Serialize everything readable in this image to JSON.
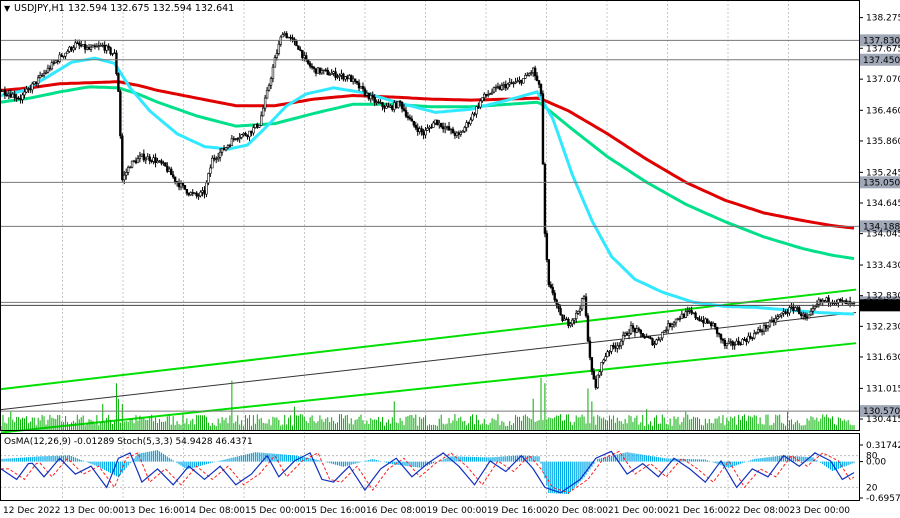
{
  "header": {
    "symbol_label": "USDJPY,H1",
    "ohlc": "132.594 132.675 132.594 132.641",
    "arrow_glyph": "▼"
  },
  "oscillator_header": {
    "text": "OsMA(12,26,9) -0.01289  Stoch(5,3,3) 54.9428 46.4371"
  },
  "colors": {
    "background": "#ffffff",
    "candle": "#000000",
    "ema_red": "#e00000",
    "ema_green": "#00e08a",
    "ema_cyan": "#30e8ff",
    "channel": "#00e000",
    "channel_mid": "#333333",
    "volume": "#00b000",
    "osma": "#00a8e8",
    "stoch_main": "#1030c0",
    "stoch_signal": "#ff2020",
    "level_line": "#777777",
    "price_tag_bg": "#a0a8b8"
  },
  "chart_data": {
    "type": "candlestick",
    "title": "USDJPY,H1",
    "ylim": [
      130.2,
      138.62
    ],
    "y_ticks": [
      "138.275",
      "137.675",
      "137.070",
      "136.460",
      "135.860",
      "135.245",
      "134.645",
      "134.045",
      "133.430",
      "132.830",
      "132.230",
      "131.630",
      "131.015",
      "130.415"
    ],
    "x_ticks": [
      "12 Dec 2022",
      "13 Dec 00:00",
      "13 Dec 16:00",
      "14 Dec 08:00",
      "15 Dec 00:00",
      "15 Dec 16:00",
      "16 Dec 08:00",
      "19 Dec 00:00",
      "19 Dec 16:00",
      "20 Dec 08:00",
      "21 Dec 00:00",
      "21 Dec 16:00",
      "22 Dec 08:00",
      "23 Dec 00:00"
    ],
    "levels": [
      {
        "label": "137.830",
        "value": 137.83
      },
      {
        "label": "137.450",
        "value": 137.45
      },
      {
        "label": "135.050",
        "value": 135.05
      },
      {
        "label": "134.188",
        "value": 134.188
      },
      {
        "label": "132.700",
        "value": 132.7
      },
      {
        "label": "130.570",
        "value": 130.57
      }
    ],
    "current_price": {
      "label": "132.641",
      "value": 132.641
    },
    "path_keypoints": [
      [
        0,
        136.85
      ],
      [
        10,
        136.7
      ],
      [
        20,
        137.1
      ],
      [
        30,
        137.5
      ],
      [
        38,
        137.75
      ],
      [
        45,
        137.65
      ],
      [
        52,
        137.72
      ],
      [
        58,
        137.55
      ],
      [
        60,
        136.85
      ],
      [
        62,
        135.1
      ],
      [
        66,
        135.4
      ],
      [
        72,
        135.55
      ],
      [
        78,
        135.5
      ],
      [
        84,
        135.35
      ],
      [
        90,
        135.05
      ],
      [
        96,
        134.85
      ],
      [
        100,
        134.78
      ],
      [
        104,
        134.85
      ],
      [
        108,
        135.5
      ],
      [
        114,
        135.7
      ],
      [
        120,
        135.95
      ],
      [
        126,
        136.0
      ],
      [
        132,
        136.2
      ],
      [
        136,
        136.8
      ],
      [
        140,
        137.45
      ],
      [
        144,
        138.0
      ],
      [
        148,
        137.85
      ],
      [
        152,
        137.7
      ],
      [
        156,
        137.4
      ],
      [
        160,
        137.25
      ],
      [
        166,
        137.2
      ],
      [
        172,
        137.15
      ],
      [
        178,
        137.1
      ],
      [
        186,
        136.8
      ],
      [
        192,
        136.6
      ],
      [
        198,
        136.5
      ],
      [
        204,
        136.6
      ],
      [
        210,
        136.2
      ],
      [
        216,
        136.0
      ],
      [
        222,
        136.25
      ],
      [
        228,
        136.1
      ],
      [
        234,
        135.95
      ],
      [
        240,
        136.3
      ],
      [
        246,
        136.7
      ],
      [
        252,
        136.85
      ],
      [
        258,
        136.95
      ],
      [
        264,
        137.0
      ],
      [
        268,
        137.1
      ],
      [
        272,
        137.25
      ],
      [
        276,
        136.8
      ],
      [
        278,
        134.0
      ],
      [
        280,
        133.0
      ],
      [
        282,
        132.9
      ],
      [
        286,
        132.4
      ],
      [
        290,
        132.3
      ],
      [
        294,
        132.45
      ],
      [
        298,
        132.8
      ],
      [
        300,
        132.0
      ],
      [
        302,
        131.3
      ],
      [
        304,
        131.05
      ],
      [
        306,
        131.4
      ],
      [
        310,
        131.75
      ],
      [
        316,
        131.9
      ],
      [
        322,
        132.2
      ],
      [
        328,
        132.05
      ],
      [
        334,
        131.9
      ],
      [
        340,
        132.2
      ],
      [
        346,
        132.4
      ],
      [
        352,
        132.5
      ],
      [
        358,
        132.35
      ],
      [
        364,
        132.25
      ],
      [
        370,
        131.85
      ],
      [
        376,
        131.9
      ],
      [
        382,
        132.0
      ],
      [
        388,
        132.15
      ],
      [
        394,
        132.3
      ],
      [
        400,
        132.5
      ],
      [
        406,
        132.6
      ],
      [
        412,
        132.35
      ],
      [
        418,
        132.7
      ],
      [
        424,
        132.75
      ],
      [
        430,
        132.7
      ],
      [
        437,
        132.64
      ]
    ],
    "series": [
      {
        "name": "EMA red",
        "color": "#e00000",
        "points": [
          [
            0,
            136.85
          ],
          [
            15,
            136.9
          ],
          [
            30,
            136.98
          ],
          [
            45,
            137.0
          ],
          [
            60,
            137.02
          ],
          [
            70,
            136.95
          ],
          [
            80,
            136.85
          ],
          [
            100,
            136.7
          ],
          [
            120,
            136.55
          ],
          [
            140,
            136.55
          ],
          [
            160,
            136.68
          ],
          [
            180,
            136.75
          ],
          [
            200,
            136.72
          ],
          [
            220,
            136.68
          ],
          [
            240,
            136.66
          ],
          [
            260,
            136.68
          ],
          [
            275,
            136.7
          ],
          [
            290,
            136.45
          ],
          [
            310,
            136.0
          ],
          [
            330,
            135.5
          ],
          [
            350,
            135.05
          ],
          [
            370,
            134.7
          ],
          [
            390,
            134.45
          ],
          [
            410,
            134.3
          ],
          [
            425,
            134.2
          ],
          [
            437,
            134.15
          ]
        ]
      },
      {
        "name": "EMA green",
        "color": "#00e08a",
        "points": [
          [
            0,
            136.62
          ],
          [
            15,
            136.7
          ],
          [
            30,
            136.82
          ],
          [
            45,
            136.92
          ],
          [
            60,
            136.9
          ],
          [
            70,
            136.78
          ],
          [
            80,
            136.62
          ],
          [
            100,
            136.35
          ],
          [
            120,
            136.15
          ],
          [
            140,
            136.2
          ],
          [
            160,
            136.4
          ],
          [
            180,
            136.58
          ],
          [
            200,
            136.58
          ],
          [
            220,
            136.53
          ],
          [
            240,
            136.53
          ],
          [
            260,
            136.58
          ],
          [
            275,
            136.62
          ],
          [
            290,
            136.15
          ],
          [
            310,
            135.55
          ],
          [
            330,
            135.05
          ],
          [
            350,
            134.62
          ],
          [
            370,
            134.28
          ],
          [
            390,
            133.98
          ],
          [
            410,
            133.75
          ],
          [
            425,
            133.62
          ],
          [
            437,
            133.55
          ]
        ]
      },
      {
        "name": "EMA cyan",
        "color": "#30e8ff",
        "points": [
          [
            0,
            136.75
          ],
          [
            12,
            136.85
          ],
          [
            24,
            137.12
          ],
          [
            36,
            137.4
          ],
          [
            48,
            137.48
          ],
          [
            58,
            137.38
          ],
          [
            66,
            136.9
          ],
          [
            76,
            136.45
          ],
          [
            90,
            136.0
          ],
          [
            104,
            135.75
          ],
          [
            116,
            135.7
          ],
          [
            126,
            135.78
          ],
          [
            136,
            136.15
          ],
          [
            146,
            136.55
          ],
          [
            156,
            136.78
          ],
          [
            170,
            136.9
          ],
          [
            186,
            136.8
          ],
          [
            204,
            136.6
          ],
          [
            222,
            136.42
          ],
          [
            240,
            136.48
          ],
          [
            258,
            136.65
          ],
          [
            274,
            136.82
          ],
          [
            282,
            136.3
          ],
          [
            292,
            135.2
          ],
          [
            302,
            134.3
          ],
          [
            312,
            133.6
          ],
          [
            324,
            133.15
          ],
          [
            338,
            132.9
          ],
          [
            354,
            132.7
          ],
          [
            370,
            132.62
          ],
          [
            386,
            132.6
          ],
          [
            402,
            132.55
          ],
          [
            418,
            132.5
          ],
          [
            430,
            132.48
          ],
          [
            437,
            132.47
          ]
        ]
      }
    ],
    "channel": {
      "upper": [
        [
          0,
          131.0
        ],
        [
          437,
          132.95
        ]
      ],
      "middle": [
        [
          0,
          130.6
        ],
        [
          437,
          132.5
        ]
      ],
      "lower": [
        [
          0,
          130.15
        ],
        [
          437,
          131.9
        ]
      ]
    },
    "volume_bars": {
      "count": 437,
      "spikes": [
        [
          5,
          0.35
        ],
        [
          52,
          0.5
        ],
        [
          59,
          0.9
        ],
        [
          60,
          0.6
        ],
        [
          62,
          0.5
        ],
        [
          118,
          0.95
        ],
        [
          150,
          0.45
        ],
        [
          201,
          0.55
        ],
        [
          272,
          0.6
        ],
        [
          276,
          1.0
        ],
        [
          278,
          0.9
        ],
        [
          300,
          0.8
        ],
        [
          302,
          0.55
        ],
        [
          330,
          0.4
        ],
        [
          350,
          0.35
        ],
        [
          380,
          0.3
        ],
        [
          402,
          0.35
        ]
      ]
    }
  },
  "oscillator": {
    "y_ticks": [
      "0.31742",
      "0.00",
      "-0.69576"
    ],
    "stoch_levels": [
      "80",
      "20"
    ],
    "osma_ylim": [
      -0.69576,
      0.31742
    ],
    "osma_keypoints": [
      [
        0,
        0.05
      ],
      [
        20,
        0.1
      ],
      [
        35,
        0.12
      ],
      [
        50,
        -0.1
      ],
      [
        60,
        -0.3
      ],
      [
        70,
        0.15
      ],
      [
        80,
        0.22
      ],
      [
        95,
        -0.15
      ],
      [
        110,
        0.0
      ],
      [
        130,
        0.18
      ],
      [
        150,
        0.12
      ],
      [
        160,
        0.05
      ],
      [
        175,
        -0.1
      ],
      [
        190,
        0.05
      ],
      [
        200,
        -0.05
      ],
      [
        215,
        -0.12
      ],
      [
        230,
        0.1
      ],
      [
        250,
        0.08
      ],
      [
        265,
        0.12
      ],
      [
        275,
        0.1
      ],
      [
        280,
        -0.6
      ],
      [
        290,
        -0.62
      ],
      [
        298,
        -0.3
      ],
      [
        305,
        0.05
      ],
      [
        320,
        0.18
      ],
      [
        340,
        0.06
      ],
      [
        360,
        0.04
      ],
      [
        372,
        -0.12
      ],
      [
        385,
        0.05
      ],
      [
        400,
        0.12
      ],
      [
        415,
        0.08
      ],
      [
        425,
        -0.18
      ],
      [
        437,
        -0.01
      ]
    ],
    "stoch_keypoints": [
      [
        0,
        55
      ],
      [
        8,
        35
      ],
      [
        15,
        70
      ],
      [
        22,
        40
      ],
      [
        30,
        75
      ],
      [
        38,
        45
      ],
      [
        46,
        60
      ],
      [
        54,
        20
      ],
      [
        60,
        75
      ],
      [
        66,
        85
      ],
      [
        72,
        30
      ],
      [
        80,
        55
      ],
      [
        88,
        25
      ],
      [
        96,
        60
      ],
      [
        104,
        35
      ],
      [
        112,
        60
      ],
      [
        120,
        25
      ],
      [
        128,
        45
      ],
      [
        136,
        80
      ],
      [
        142,
        40
      ],
      [
        150,
        70
      ],
      [
        158,
        85
      ],
      [
        164,
        35
      ],
      [
        170,
        30
      ],
      [
        178,
        60
      ],
      [
        186,
        15
      ],
      [
        194,
        55
      ],
      [
        202,
        75
      ],
      [
        210,
        40
      ],
      [
        218,
        65
      ],
      [
        226,
        85
      ],
      [
        234,
        60
      ],
      [
        242,
        25
      ],
      [
        250,
        70
      ],
      [
        258,
        50
      ],
      [
        266,
        80
      ],
      [
        272,
        55
      ],
      [
        278,
        20
      ],
      [
        286,
        10
      ],
      [
        296,
        35
      ],
      [
        304,
        75
      ],
      [
        312,
        88
      ],
      [
        320,
        45
      ],
      [
        328,
        65
      ],
      [
        336,
        40
      ],
      [
        344,
        75
      ],
      [
        352,
        55
      ],
      [
        360,
        30
      ],
      [
        368,
        70
      ],
      [
        376,
        20
      ],
      [
        384,
        55
      ],
      [
        392,
        40
      ],
      [
        400,
        80
      ],
      [
        408,
        60
      ],
      [
        416,
        85
      ],
      [
        424,
        70
      ],
      [
        430,
        35
      ],
      [
        437,
        50
      ]
    ]
  }
}
